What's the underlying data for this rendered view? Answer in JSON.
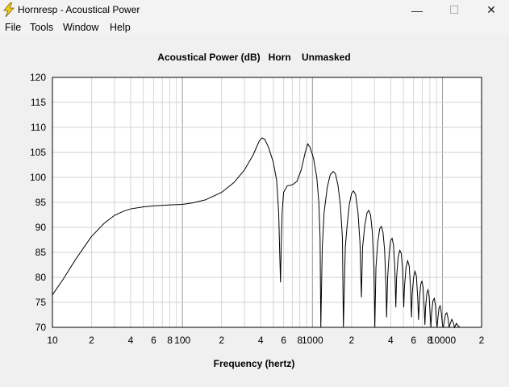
{
  "window": {
    "title": "Hornresp - Acoustical Power",
    "minimize_label": "—",
    "maximize_label": "☐",
    "close_label": "✕"
  },
  "menu": {
    "items": [
      {
        "label": "File"
      },
      {
        "label": "Tools"
      },
      {
        "label": "Window"
      },
      {
        "label": "Help"
      }
    ]
  },
  "chart_data": {
    "type": "line",
    "title": "Acoustical Power (dB)   Horn    Unmasked",
    "xlabel": "Frequency (hertz)",
    "ylabel": "",
    "x_scale": "log",
    "xlim": [
      10,
      20000
    ],
    "ylim": [
      70,
      120
    ],
    "x_tick_labels": [
      {
        "value": 10,
        "label": "10"
      },
      {
        "value": 20,
        "label": "2"
      },
      {
        "value": 40,
        "label": "4"
      },
      {
        "value": 60,
        "label": "6"
      },
      {
        "value": 80,
        "label": "8"
      },
      {
        "value": 100,
        "label": "100"
      },
      {
        "value": 200,
        "label": "2"
      },
      {
        "value": 400,
        "label": "4"
      },
      {
        "value": 600,
        "label": "6"
      },
      {
        "value": 800,
        "label": "8"
      },
      {
        "value": 1000,
        "label": "1000"
      },
      {
        "value": 2000,
        "label": "2"
      },
      {
        "value": 4000,
        "label": "4"
      },
      {
        "value": 6000,
        "label": "6"
      },
      {
        "value": 8000,
        "label": "8"
      },
      {
        "value": 10000,
        "label": "10000"
      },
      {
        "value": 20000,
        "label": "2"
      }
    ],
    "y_ticks": [
      70,
      75,
      80,
      85,
      90,
      95,
      100,
      105,
      110,
      115,
      120
    ],
    "grid": true,
    "line_color": "#000000",
    "series": [
      {
        "points": [
          [
            10,
            76.5
          ],
          [
            12,
            79.5
          ],
          [
            15,
            83.5
          ],
          [
            18,
            86.5
          ],
          [
            20,
            88.2
          ],
          [
            25,
            90.8
          ],
          [
            30,
            92.4
          ],
          [
            35,
            93.2
          ],
          [
            40,
            93.7
          ],
          [
            50,
            94.1
          ],
          [
            60,
            94.3
          ],
          [
            70,
            94.4
          ],
          [
            80,
            94.5
          ],
          [
            100,
            94.6
          ],
          [
            120,
            94.9
          ],
          [
            150,
            95.5
          ],
          [
            200,
            97.0
          ],
          [
            250,
            99.0
          ],
          [
            300,
            101.5
          ],
          [
            350,
            104.5
          ],
          [
            390,
            107.3
          ],
          [
            410,
            107.9
          ],
          [
            430,
            107.6
          ],
          [
            460,
            106.0
          ],
          [
            500,
            103.0
          ],
          [
            530,
            99.5
          ],
          [
            550,
            93.0
          ],
          [
            560,
            85.0
          ],
          [
            568,
            79.0
          ],
          [
            575,
            86.0
          ],
          [
            585,
            93.0
          ],
          [
            600,
            97.0
          ],
          [
            640,
            98.3
          ],
          [
            700,
            98.5
          ],
          [
            760,
            99.2
          ],
          [
            820,
            101.5
          ],
          [
            880,
            105.0
          ],
          [
            920,
            106.7
          ],
          [
            960,
            106.0
          ],
          [
            1020,
            103.8
          ],
          [
            1080,
            100.0
          ],
          [
            1120,
            95.0
          ],
          [
            1145,
            88.0
          ],
          [
            1160,
            70.0
          ],
          [
            1190,
            86.0
          ],
          [
            1230,
            93.0
          ],
          [
            1300,
            98.0
          ],
          [
            1370,
            100.5
          ],
          [
            1440,
            101.2
          ],
          [
            1500,
            100.8
          ],
          [
            1570,
            98.5
          ],
          [
            1640,
            94.5
          ],
          [
            1700,
            88.0
          ],
          [
            1730,
            70.0
          ],
          [
            1790,
            86.0
          ],
          [
            1850,
            90.5
          ],
          [
            1920,
            94.5
          ],
          [
            2000,
            96.8
          ],
          [
            2070,
            97.3
          ],
          [
            2150,
            96.5
          ],
          [
            2240,
            93.0
          ],
          [
            2320,
            87.0
          ],
          [
            2380,
            76.0
          ],
          [
            2430,
            86.0
          ],
          [
            2530,
            90.5
          ],
          [
            2630,
            92.9
          ],
          [
            2710,
            93.4
          ],
          [
            2800,
            92.5
          ],
          [
            2890,
            89.0
          ],
          [
            2970,
            82.0
          ],
          [
            3020,
            70.0
          ],
          [
            3080,
            82.0
          ],
          [
            3180,
            87.0
          ],
          [
            3290,
            89.7
          ],
          [
            3390,
            90.2
          ],
          [
            3490,
            89.0
          ],
          [
            3590,
            85.5
          ],
          [
            3680,
            78.0
          ],
          [
            3720,
            72.0
          ],
          [
            3790,
            80.0
          ],
          [
            3900,
            85.0
          ],
          [
            4000,
            87.4
          ],
          [
            4100,
            87.8
          ],
          [
            4200,
            86.5
          ],
          [
            4300,
            82.0
          ],
          [
            4380,
            74.0
          ],
          [
            4440,
            80.0
          ],
          [
            4560,
            84.0
          ],
          [
            4700,
            85.4
          ],
          [
            4820,
            84.8
          ],
          [
            4940,
            81.5
          ],
          [
            5040,
            74.0
          ],
          [
            5100,
            78.0
          ],
          [
            5250,
            82.0
          ],
          [
            5400,
            83.3
          ],
          [
            5550,
            82.3
          ],
          [
            5680,
            78.0
          ],
          [
            5780,
            72.0
          ],
          [
            5850,
            76.5
          ],
          [
            6000,
            80.0
          ],
          [
            6150,
            81.2
          ],
          [
            6300,
            80.3
          ],
          [
            6450,
            76.0
          ],
          [
            6550,
            71.5
          ],
          [
            6650,
            75.5
          ],
          [
            6800,
            78.5
          ],
          [
            6950,
            79.3
          ],
          [
            7100,
            78.0
          ],
          [
            7250,
            73.5
          ],
          [
            7330,
            70.5
          ],
          [
            7420,
            74.0
          ],
          [
            7580,
            76.8
          ],
          [
            7750,
            77.5
          ],
          [
            7900,
            76.2
          ],
          [
            8050,
            72.5
          ],
          [
            8150,
            70.0
          ],
          [
            8250,
            72.8
          ],
          [
            8450,
            75.3
          ],
          [
            8650,
            75.8
          ],
          [
            8850,
            74.3
          ],
          [
            9000,
            71.0
          ],
          [
            9100,
            70.0
          ],
          [
            9200,
            71.5
          ],
          [
            9400,
            73.8
          ],
          [
            9600,
            74.3
          ],
          [
            9800,
            73.0
          ],
          [
            10000,
            70.5
          ],
          [
            10150,
            70.0
          ],
          [
            10300,
            71.0
          ],
          [
            10550,
            72.6
          ],
          [
            10800,
            72.9
          ],
          [
            11050,
            71.8
          ],
          [
            11250,
            70.0
          ],
          [
            11500,
            70.8
          ],
          [
            11800,
            71.6
          ],
          [
            12100,
            71.0
          ],
          [
            12400,
            70.0
          ],
          [
            12800,
            70.8
          ],
          [
            13200,
            70.3
          ],
          [
            13600,
            70.0
          ],
          [
            14000,
            70.0
          ]
        ]
      }
    ]
  }
}
